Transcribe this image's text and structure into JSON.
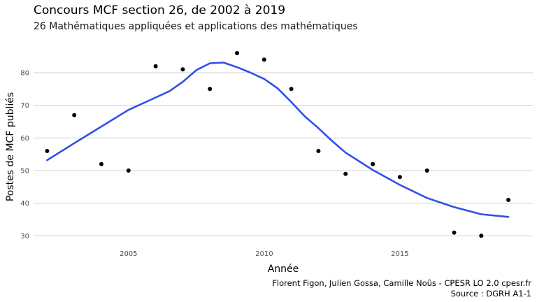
{
  "chart_data": {
    "type": "scatter",
    "title": "Concours MCF section 26, de 2002 à 2019",
    "subtitle": "26 Mathématiques appliquées et applications des mathématiques",
    "xlabel": "Année",
    "ylabel": "Postes de MCF publiés",
    "x_ticks": [
      2005,
      2010,
      2015
    ],
    "y_ticks": [
      30,
      40,
      50,
      60,
      70,
      80
    ],
    "xlim": [
      2001.5,
      2019.9
    ],
    "ylim": [
      27.5,
      89
    ],
    "grid": "horizontal",
    "points": {
      "x": [
        2002,
        2003,
        2004,
        2005,
        2006,
        2007,
        2008,
        2009,
        2010,
        2011,
        2012,
        2013,
        2014,
        2015,
        2016,
        2017,
        2018,
        2019
      ],
      "y": [
        56,
        67,
        52,
        50,
        82,
        81,
        75,
        86,
        84,
        75,
        56,
        49,
        52,
        48,
        50,
        31,
        30,
        41
      ]
    },
    "smooth": {
      "x": [
        2002,
        2003,
        2004,
        2005,
        2006,
        2006.5,
        2007,
        2007.5,
        2008,
        2008.5,
        2009,
        2009.5,
        2010,
        2010.5,
        2011,
        2011.5,
        2012,
        2012.5,
        2013,
        2014,
        2015,
        2016,
        2017,
        2018,
        2019
      ],
      "y": [
        53.2,
        58.4,
        63.5,
        68.6,
        72.4,
        74.3,
        77.2,
        80.8,
        82.9,
        83.1,
        81.7,
        80.0,
        78.1,
        75.2,
        71.0,
        66.6,
        63.0,
        59.1,
        55.5,
        50.2,
        45.6,
        41.6,
        38.8,
        36.6,
        35.8
      ]
    },
    "colors": {
      "points": "#000000",
      "line": "#3050e8",
      "grid": "#d0d0d0"
    }
  },
  "caption": {
    "line1": "Florent Figon, Julien Gossa, Camille Noûs - CPESR LO 2.0 cpesr.fr",
    "line2": "Source : DGRH A1-1"
  }
}
